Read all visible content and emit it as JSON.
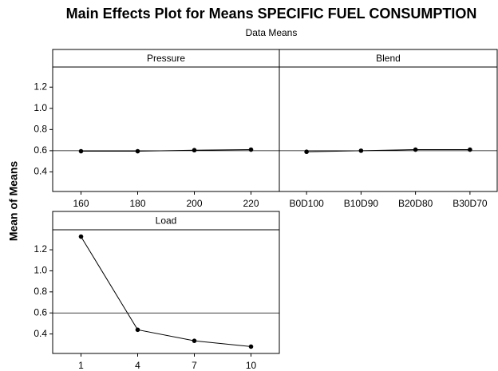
{
  "figure": {
    "title": "Main Effects Plot for Means SPECIFIC FUEL CONSUMPTION",
    "subtitle": "Data Means",
    "ylabel": "Mean of Means"
  },
  "chart_data": [
    {
      "type": "line",
      "title": "Pressure",
      "categories": [
        "160",
        "180",
        "200",
        "220"
      ],
      "values": [
        0.595,
        0.595,
        0.605,
        0.61
      ],
      "color": "#000000",
      "ylim": [
        0.215,
        1.39
      ],
      "yticks": [
        {
          "value": 0.4,
          "label": "0.4"
        },
        {
          "value": 0.6,
          "label": "0.6"
        },
        {
          "value": 0.8,
          "label": "0.8"
        },
        {
          "value": 1.0,
          "label": "1.0"
        },
        {
          "value": 1.2,
          "label": "1.2"
        }
      ],
      "reference": 0.6
    },
    {
      "type": "line",
      "title": "Blend",
      "categories": [
        "B0D100",
        "B10D90",
        "B20D80",
        "B30D70"
      ],
      "values": [
        0.59,
        0.6,
        0.61,
        0.61
      ],
      "color": "#000000",
      "ylim": [
        0.215,
        1.39
      ],
      "reference": 0.6
    },
    {
      "type": "line",
      "title": "Load",
      "categories": [
        "1",
        "4",
        "7",
        "10"
      ],
      "values": [
        1.325,
        0.44,
        0.335,
        0.28
      ],
      "color": "#000000",
      "ylim": [
        0.215,
        1.39
      ],
      "yticks": [
        {
          "value": 0.4,
          "label": "0.4"
        },
        {
          "value": 0.6,
          "label": "0.6"
        },
        {
          "value": 0.8,
          "label": "0.8"
        },
        {
          "value": 1.0,
          "label": "1.0"
        },
        {
          "value": 1.2,
          "label": "1.2"
        }
      ],
      "reference": 0.6
    }
  ]
}
